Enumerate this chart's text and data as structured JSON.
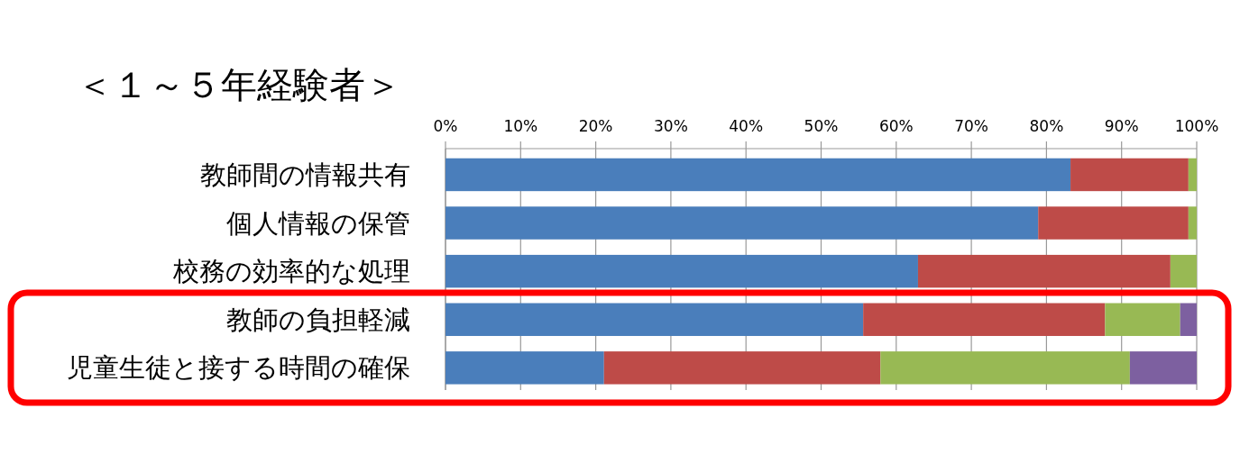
{
  "chart_data": {
    "type": "bar",
    "title": "＜１～５年経験者＞",
    "orientation": "horizontal",
    "stacked": true,
    "categories": [
      "教師間の情報共有",
      "個人情報の保管",
      "校務の効率的な処理",
      "教師の負担軽減",
      "児童生徒と接する時間の確保"
    ],
    "series": [
      {
        "color": "#4a7ebb",
        "values": [
          83.2,
          78.9,
          62.9,
          55.6,
          21.1
        ]
      },
      {
        "color": "#be4b48",
        "values": [
          15.7,
          20.0,
          33.6,
          32.2,
          36.8
        ]
      },
      {
        "color": "#98b954",
        "values": [
          1.1,
          1.1,
          3.5,
          10.0,
          33.2
        ]
      },
      {
        "color": "#7d60a0",
        "values": [
          0,
          0,
          0,
          2.2,
          8.9
        ]
      }
    ],
    "xlim": [
      0,
      100
    ],
    "xticks": [
      {
        "value": 0,
        "label": "0%"
      },
      {
        "value": 10,
        "label": "10%"
      },
      {
        "value": 20,
        "label": "20%"
      },
      {
        "value": 30,
        "label": "30%"
      },
      {
        "value": 40,
        "label": "40%"
      },
      {
        "value": 50,
        "label": "50%"
      },
      {
        "value": 60,
        "label": "60%"
      },
      {
        "value": 70,
        "label": "70%"
      },
      {
        "value": 80,
        "label": "80%"
      },
      {
        "value": 90,
        "label": "90%"
      },
      {
        "value": 100,
        "label": "100%"
      }
    ],
    "grid": "x"
  }
}
